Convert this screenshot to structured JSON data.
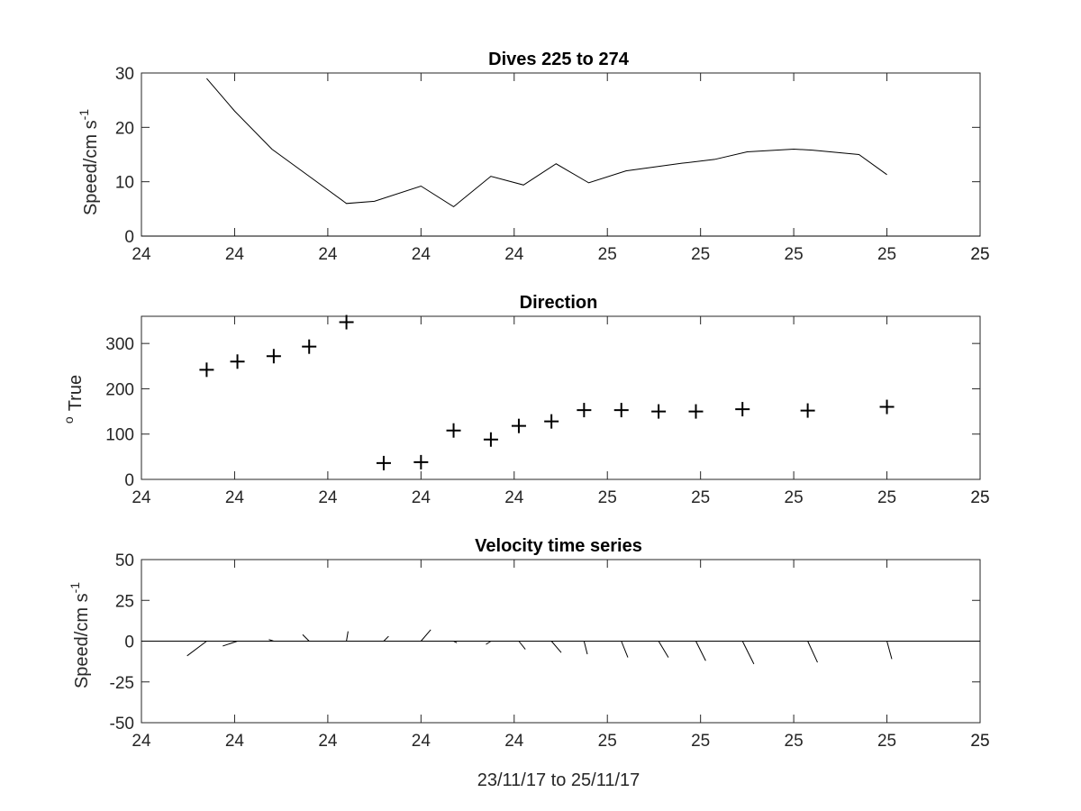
{
  "chart_data": [
    {
      "type": "line",
      "title": "Dives 225 to 274",
      "xlabel": "",
      "ylabel": "Speed/cm s",
      "ylabel_sup": "-1",
      "xticks": [
        "24",
        "24",
        "24",
        "24",
        "24",
        "25",
        "25",
        "25",
        "25",
        "25"
      ],
      "xlim": [
        0,
        9
      ],
      "ylim": [
        0,
        30
      ],
      "yticks": [
        0,
        10,
        20,
        30
      ],
      "ytick_labels": [
        "0",
        "10",
        "20",
        "30"
      ],
      "zero_line": true,
      "x": [
        0.7,
        1.0,
        1.4,
        1.8,
        2.2,
        2.5,
        3.0,
        3.35,
        3.75,
        4.1,
        4.45,
        4.8,
        5.2,
        5.8,
        6.15,
        6.5,
        7.0,
        7.2,
        7.7,
        8.0
      ],
      "y": [
        29,
        23,
        16,
        11,
        6,
        6.4,
        9.2,
        5.4,
        11,
        9.4,
        13.3,
        9.8,
        12,
        13.4,
        14.1,
        15.5,
        16,
        15.8,
        15,
        11.3
      ]
    },
    {
      "type": "scatter",
      "title": "Direction",
      "xlabel": "",
      "ylabel": "True",
      "ylabel_sup": "o",
      "marker": "+",
      "xticks": [
        "24",
        "24",
        "24",
        "24",
        "24",
        "25",
        "25",
        "25",
        "25",
        "25"
      ],
      "xlim": [
        0,
        9
      ],
      "ylim": [
        0,
        360
      ],
      "yticks": [
        0,
        100,
        200,
        300
      ],
      "ytick_labels": [
        "0",
        "100",
        "200",
        "300"
      ],
      "x": [
        0.7,
        1.03,
        1.42,
        1.8,
        2.2,
        2.6,
        3.0,
        3.35,
        3.75,
        4.05,
        4.4,
        4.75,
        5.15,
        5.55,
        5.95,
        6.45,
        7.15,
        8.0
      ],
      "y": [
        242,
        260,
        272,
        293,
        347,
        36,
        38,
        108,
        88,
        118,
        128,
        153,
        153,
        150,
        150,
        155,
        152,
        160
      ]
    },
    {
      "type": "line",
      "subtype": "stick",
      "title": "Velocity time series",
      "xlabel": "23/11/17 to 25/11/17",
      "ylabel": "Speed/cm s",
      "ylabel_sup": "-1",
      "xticks": [
        "24",
        "24",
        "24",
        "24",
        "24",
        "25",
        "25",
        "25",
        "25",
        "25"
      ],
      "xlim": [
        0,
        9
      ],
      "ylim": [
        -50,
        50
      ],
      "yticks": [
        -50,
        -25,
        0,
        25,
        50
      ],
      "ytick_labels": [
        "-50",
        "-25",
        "0",
        "25",
        "50"
      ],
      "zero_line": true,
      "x": [
        0.7,
        1.03,
        1.42,
        1.8,
        2.2,
        2.6,
        3.0,
        3.35,
        3.75,
        4.05,
        4.4,
        4.75,
        5.15,
        5.55,
        5.95,
        6.45,
        7.15,
        8.0
      ],
      "u": [
        -12,
        -9,
        -3,
        -4,
        1,
        3,
        6,
        2,
        -3,
        4,
        6,
        2,
        4,
        6,
        6,
        7,
        6,
        3
      ],
      "v": [
        -9,
        -3,
        1,
        4,
        6,
        3,
        7,
        -1,
        -2,
        -5,
        -7,
        -8,
        -10,
        -10,
        -12,
        -14,
        -13,
        -11
      ]
    }
  ]
}
